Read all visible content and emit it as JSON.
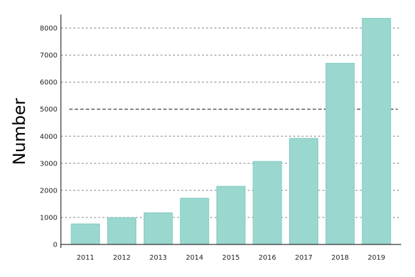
{
  "chart_data": {
    "type": "bar",
    "title": "",
    "xlabel": "",
    "ylabel": "Number",
    "categories": [
      "2011",
      "2012",
      "2013",
      "2014",
      "2015",
      "2016",
      "2017",
      "2018",
      "2019"
    ],
    "values": [
      760,
      990,
      1170,
      1710,
      2150,
      3070,
      3920,
      6700,
      8360
    ],
    "ylim": [
      0,
      8500
    ],
    "yticks": [
      0,
      1000,
      2000,
      3000,
      4000,
      5000,
      6000,
      7000,
      8000
    ],
    "grid": "y-dashed",
    "reference_line": 5000,
    "colors": {
      "bar_fill": "#9ad7cf",
      "bar_stroke": "#7fcbc1",
      "grid": "#888888",
      "reference_line": "#666666",
      "axis": "#000000"
    }
  }
}
